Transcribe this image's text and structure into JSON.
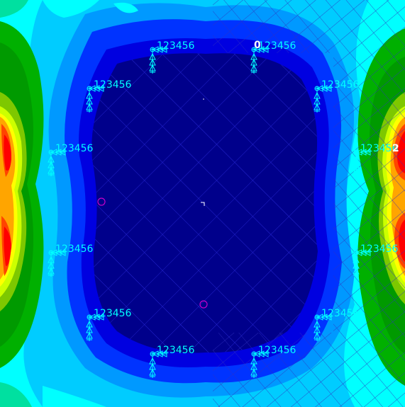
{
  "viewport": {
    "background": "#ffffff",
    "colormap": [
      "#00008b",
      "#0000c8",
      "#0033ff",
      "#0099ff",
      "#00ccff",
      "#00ffff",
      "#00e0a0",
      "#00b000",
      "#009a00",
      "#7ec800",
      "#ccff00",
      "#ffff00",
      "#ffa500",
      "#ff4400",
      "#ff0000",
      "#e00000"
    ],
    "mesh_color": "#3030c0",
    "support_color": "#00ffff",
    "marker_color": "#c800c8",
    "constraint_label": "123456",
    "top_marker": "0",
    "right_marker": "2"
  }
}
